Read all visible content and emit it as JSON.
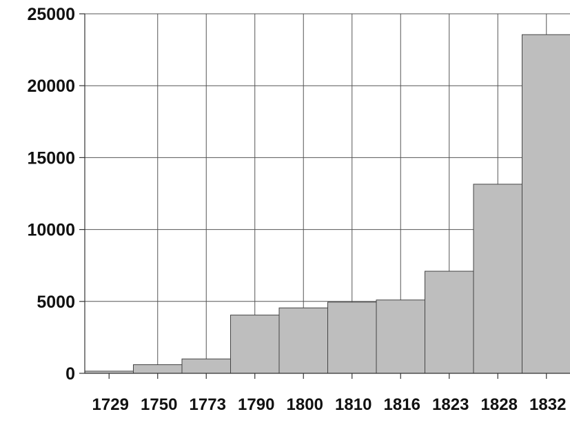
{
  "chart_data": {
    "type": "bar",
    "title": "",
    "xlabel": "",
    "ylabel": "",
    "categories": [
      "1729",
      "1750",
      "1773",
      "1790",
      "1800",
      "1810",
      "1816",
      "1823",
      "1828",
      "1832"
    ],
    "values": [
      150,
      600,
      1000,
      4050,
      4550,
      4950,
      5100,
      7100,
      13150,
      23550
    ],
    "ylim": [
      0,
      25000
    ],
    "yticks": [
      "0",
      "5000",
      "10000",
      "15000",
      "20000",
      "25000"
    ],
    "grid": true,
    "legend": "none",
    "bar_color": "#bebebe"
  }
}
